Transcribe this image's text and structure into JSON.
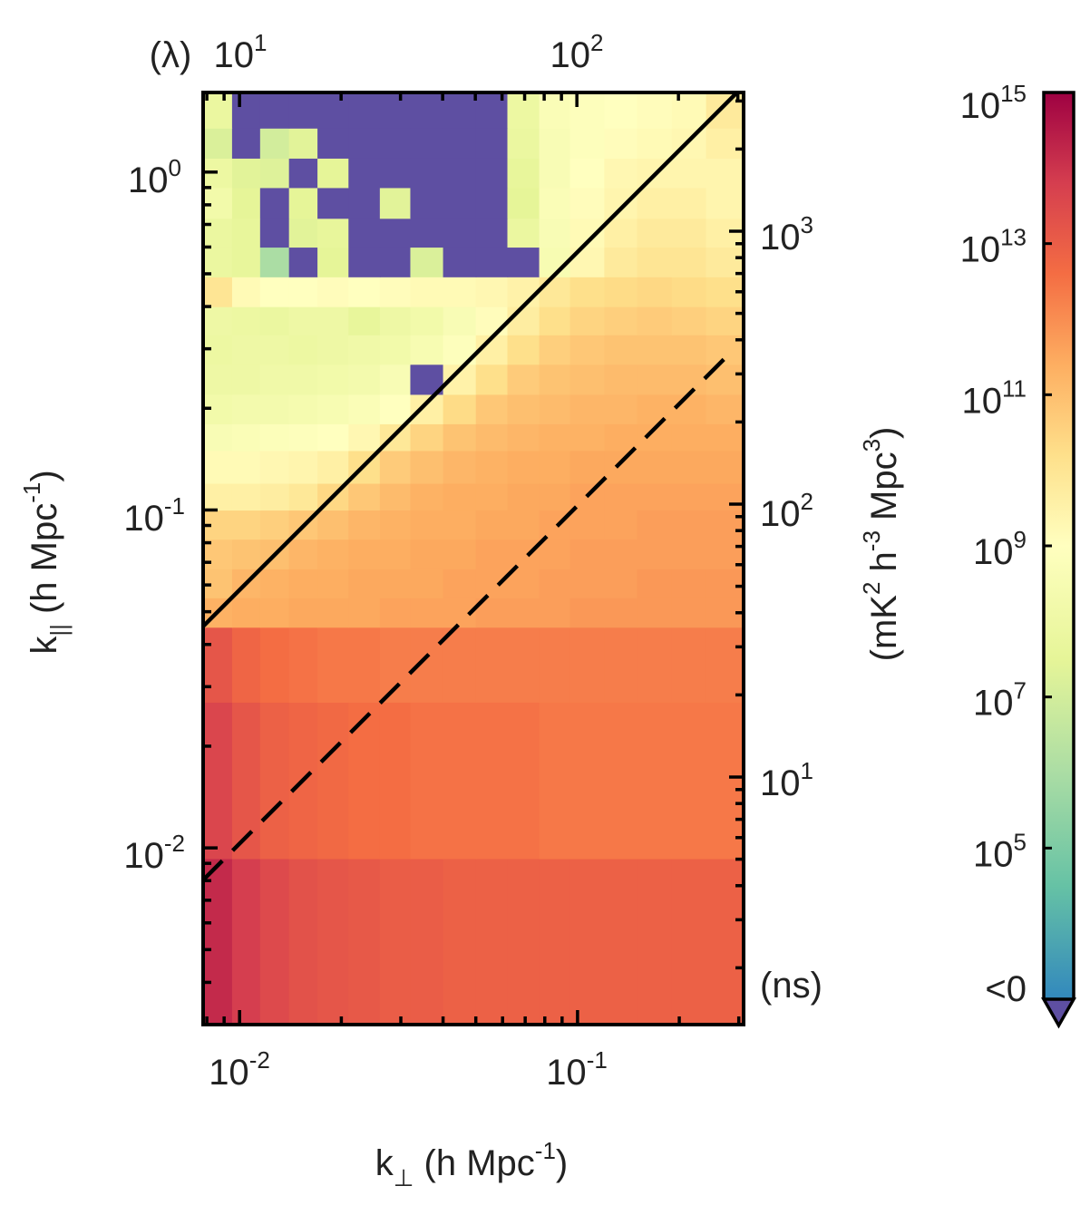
{
  "chart_data": {
    "type": "heatmap",
    "title": "",
    "xlabel": {
      "main": "k",
      "sub": "⊥",
      "unit_pre": " (h Mpc",
      "unit_sup": "-1",
      "unit_post": ")"
    },
    "ylabel": {
      "main": "k",
      "sub": "||",
      "unit_pre": " (h Mpc",
      "unit_sup": "-1",
      "unit_post": ")"
    },
    "x_scale": "log",
    "y_scale": "log",
    "xlim": [
      0.0078,
      0.31
    ],
    "ylim": [
      0.003,
      1.72
    ],
    "x_ticks": [
      {
        "base": "10",
        "exp": "-2",
        "value": 0.01
      },
      {
        "base": "10",
        "exp": "-1",
        "value": 0.1
      }
    ],
    "y_ticks": [
      {
        "base": "10",
        "exp": "0",
        "value": 1
      },
      {
        "base": "10",
        "exp": "-1",
        "value": 0.1
      },
      {
        "base": "10",
        "exp": "-2",
        "value": 0.01
      }
    ],
    "top_axis": {
      "label": "(λ)",
      "lim": [
        7.8,
        312
      ],
      "ticks": [
        {
          "base": "10",
          "exp": "1",
          "value": 10
        },
        {
          "base": "10",
          "exp": "2",
          "value": 100
        }
      ]
    },
    "right_axis": {
      "label": "(ns)",
      "ticks": [
        {
          "base": "10",
          "exp": "3",
          "value": 1000
        },
        {
          "base": "10",
          "exp": "2",
          "value": 100
        },
        {
          "base": "10",
          "exp": "1",
          "value": 10
        }
      ]
    },
    "colorbar": {
      "label": {
        "pre": "(mK",
        "s1": "2",
        "mid1": " h",
        "s2": "-3",
        "mid2": " Mpc",
        "s3": "3",
        "post": ")"
      },
      "scale": "log",
      "range_log10": [
        3,
        15
      ],
      "ticks": [
        {
          "base": "10",
          "exp": "15",
          "value": 15
        },
        {
          "base": "10",
          "exp": "13",
          "value": 13
        },
        {
          "base": "10",
          "exp": "11",
          "value": 11
        },
        {
          "base": "10",
          "exp": "9",
          "value": 9
        },
        {
          "base": "10",
          "exp": "7",
          "value": 7
        },
        {
          "base": "10",
          "exp": "5",
          "value": 5
        }
      ],
      "under_label": "<0",
      "under_color": "#5e4fa2",
      "colormap": [
        "#3288bd",
        "#66c2a5",
        "#abdda4",
        "#e6f598",
        "#ffffbf",
        "#fee08b",
        "#fdae61",
        "#f46d43",
        "#d53e4f",
        "#9e0142"
      ]
    },
    "lines": [
      {
        "name": "horizon",
        "style": "solid",
        "kpar_over_kperp": 5.8
      },
      {
        "name": "primary-beam",
        "style": "dashed",
        "kpar_over_kperp": 1.03,
        "x_end": 0.285
      }
    ],
    "x_edges": [
      0.0078,
      0.0095,
      0.0115,
      0.014,
      0.017,
      0.021,
      0.026,
      0.032,
      0.04,
      0.05,
      0.062,
      0.077,
      0.095,
      0.12,
      0.15,
      0.19,
      0.24,
      0.31
    ],
    "y_edges": [
      0.003,
      0.0093,
      0.027,
      0.045,
      0.055,
      0.067,
      0.082,
      0.1,
      0.12,
      0.15,
      0.18,
      0.22,
      0.27,
      0.33,
      0.4,
      0.49,
      0.6,
      0.73,
      0.9,
      1.1,
      1.35,
      1.72
    ],
    "z_log10_note": "-1 denotes negative (<0) power",
    "z_log10": [
      [
        14.2,
        13.8,
        13.5,
        13.3,
        13.2,
        13.1,
        13.0,
        13.0,
        12.9,
        12.9,
        12.9,
        12.9,
        12.9,
        12.9,
        12.9,
        12.9,
        12.9
      ],
      [
        13.6,
        13.2,
        12.9,
        12.8,
        12.7,
        12.6,
        12.6,
        12.5,
        12.5,
        12.5,
        12.5,
        12.4,
        12.4,
        12.4,
        12.4,
        12.4,
        12.4
      ],
      [
        13.2,
        12.8,
        12.6,
        12.5,
        12.4,
        12.4,
        12.3,
        12.3,
        12.3,
        12.3,
        12.3,
        12.3,
        12.3,
        12.3,
        12.3,
        12.3,
        12.3
      ],
      [
        11.3,
        11.4,
        11.4,
        11.5,
        11.5,
        11.5,
        11.6,
        11.6,
        11.6,
        11.7,
        11.7,
        11.7,
        11.8,
        11.8,
        11.8,
        11.8,
        11.8
      ],
      [
        10.9,
        11.2,
        11.3,
        11.4,
        11.4,
        11.5,
        11.5,
        11.5,
        11.6,
        11.6,
        11.6,
        11.7,
        11.7,
        11.7,
        11.8,
        11.8,
        11.8
      ],
      [
        10.8,
        10.9,
        11.0,
        11.2,
        11.3,
        11.4,
        11.4,
        11.5,
        11.5,
        11.6,
        11.6,
        11.6,
        11.7,
        11.7,
        11.7,
        11.7,
        11.7
      ],
      [
        10.5,
        10.5,
        10.6,
        10.8,
        11.0,
        11.2,
        11.3,
        11.4,
        11.4,
        11.5,
        11.5,
        11.6,
        11.6,
        11.6,
        11.7,
        11.7,
        11.7
      ],
      [
        9.6,
        9.6,
        9.7,
        9.9,
        10.4,
        10.8,
        11.1,
        11.3,
        11.4,
        11.4,
        11.5,
        11.5,
        11.6,
        11.6,
        11.6,
        11.6,
        11.6
      ],
      [
        9.2,
        9.2,
        9.3,
        9.4,
        9.6,
        10.2,
        10.7,
        11.0,
        11.2,
        11.3,
        11.4,
        11.4,
        11.5,
        11.5,
        11.5,
        11.5,
        11.5
      ],
      [
        8.6,
        8.7,
        8.8,
        8.9,
        9.0,
        9.3,
        9.9,
        10.5,
        10.9,
        11.1,
        11.2,
        11.3,
        11.3,
        11.4,
        11.4,
        11.4,
        11.4
      ],
      [
        8.2,
        8.3,
        8.3,
        8.4,
        8.5,
        8.7,
        9.0,
        9.6,
        10.3,
        10.8,
        11.0,
        11.1,
        11.2,
        11.2,
        11.3,
        11.3,
        11.2
      ],
      [
        8.0,
        8.0,
        8.1,
        8.1,
        8.2,
        8.3,
        8.6,
        -1,
        9.5,
        10.2,
        10.7,
        10.9,
        11.0,
        11.1,
        11.1,
        11.1,
        11.0
      ],
      [
        7.9,
        8.0,
        8.0,
        7.9,
        8.0,
        8.1,
        8.2,
        8.5,
        8.9,
        9.6,
        10.2,
        10.6,
        10.8,
        10.9,
        10.9,
        10.9,
        10.8
      ],
      [
        8.0,
        7.9,
        7.8,
        8.0,
        8.0,
        7.6,
        8.0,
        8.2,
        8.6,
        9.1,
        9.7,
        10.2,
        10.5,
        10.6,
        10.7,
        10.6,
        10.5
      ],
      [
        10.0,
        9.2,
        9.0,
        9.0,
        9.1,
        9.0,
        9.1,
        9.2,
        9.2,
        9.3,
        9.5,
        9.9,
        10.2,
        10.3,
        10.4,
        10.3,
        10.2
      ],
      [
        7.8,
        7.6,
        6.0,
        -1,
        7.5,
        -1,
        -1,
        7.2,
        -1,
        -1,
        -1,
        8.5,
        9.3,
        9.8,
        10.0,
        10.0,
        9.8
      ],
      [
        7.8,
        7.6,
        -1,
        7.4,
        7.6,
        -1,
        -1,
        -1,
        -1,
        -1,
        7.8,
        8.6,
        9.2,
        9.6,
        9.8,
        9.8,
        9.6
      ],
      [
        8.2,
        7.5,
        -1,
        7.5,
        -1,
        -1,
        7.4,
        -1,
        -1,
        -1,
        7.5,
        8.7,
        9.1,
        9.4,
        9.6,
        9.6,
        9.4
      ],
      [
        7.9,
        7.4,
        7.3,
        -1,
        7.5,
        -1,
        -1,
        -1,
        -1,
        -1,
        7.6,
        8.6,
        9.0,
        9.3,
        9.4,
        9.4,
        9.4
      ],
      [
        7.2,
        -1,
        7.0,
        7.4,
        -1,
        -1,
        -1,
        -1,
        -1,
        -1,
        7.8,
        8.6,
        8.9,
        9.1,
        9.2,
        9.3,
        9.6
      ],
      [
        7.8,
        -1,
        -1,
        -1,
        -1,
        -1,
        -1,
        -1,
        -1,
        -1,
        7.9,
        8.7,
        8.9,
        9.0,
        9.1,
        9.2,
        9.8
      ]
    ]
  }
}
